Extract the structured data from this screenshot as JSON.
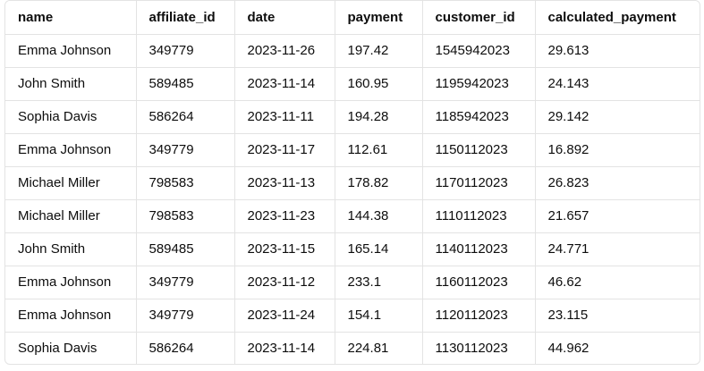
{
  "table": {
    "columns": [
      "name",
      "affiliate_id",
      "date",
      "payment",
      "customer_id",
      "calculated_payment"
    ],
    "rows": [
      [
        "Emma Johnson",
        "349779",
        "2023-11-26",
        "197.42",
        "1545942023",
        "29.613"
      ],
      [
        "John Smith",
        "589485",
        "2023-11-14",
        "160.95",
        "1195942023",
        "24.143"
      ],
      [
        "Sophia Davis",
        "586264",
        "2023-11-11",
        "194.28",
        "1185942023",
        "29.142"
      ],
      [
        "Emma Johnson",
        "349779",
        "2023-11-17",
        "112.61",
        "1150112023",
        "16.892"
      ],
      [
        "Michael Miller",
        "798583",
        "2023-11-13",
        "178.82",
        "1170112023",
        "26.823"
      ],
      [
        "Michael Miller",
        "798583",
        "2023-11-23",
        "144.38",
        "1110112023",
        "21.657"
      ],
      [
        "John Smith",
        "589485",
        "2023-11-15",
        "165.14",
        "1140112023",
        "24.771"
      ],
      [
        "Emma Johnson",
        "349779",
        "2023-11-12",
        "233.1",
        "1160112023",
        "46.62"
      ],
      [
        "Emma Johnson",
        "349779",
        "2023-11-24",
        "154.1",
        "1120112023",
        "23.115"
      ],
      [
        "Sophia Davis",
        "586264",
        "2023-11-14",
        "224.81",
        "1130112023",
        "44.962"
      ]
    ]
  },
  "colors": {
    "border": "#e3e3e3",
    "text": "#0d0d0d",
    "background": "#ffffff"
  }
}
